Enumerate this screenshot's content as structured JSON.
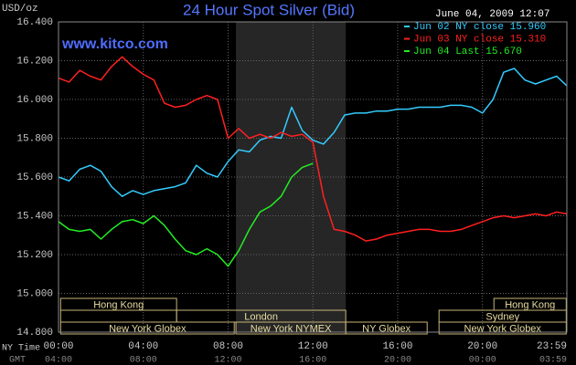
{
  "chart_data": {
    "type": "line",
    "title": "24 Hour Spot Silver (Bid)",
    "watermark": "www.kitco.com",
    "timestamp": "June 04, 2009 12:07",
    "y_label": "USD/oz",
    "x_axis_labels": [
      "NY Time",
      "GMT"
    ],
    "x": [
      0,
      0.5,
      1,
      1.5,
      2,
      2.5,
      3,
      3.5,
      4,
      4.5,
      5,
      5.5,
      6,
      6.5,
      7,
      7.5,
      8,
      8.5,
      9,
      9.5,
      10,
      10.5,
      11,
      11.5,
      12,
      12.5,
      13,
      13.5,
      14,
      14.5,
      15,
      15.5,
      16,
      16.5,
      17,
      17.5,
      18,
      18.5,
      19,
      19.5,
      20,
      20.5,
      21,
      21.5,
      22,
      22.5,
      23,
      23.5,
      23.98
    ],
    "xlim": [
      0,
      23.98
    ],
    "ylim": [
      14.8,
      16.4
    ],
    "yticks": [
      {
        "value": 14.8,
        "label": "14.800"
      },
      {
        "value": 15.0,
        "label": "15.000"
      },
      {
        "value": 15.2,
        "label": "15.200"
      },
      {
        "value": 15.4,
        "label": "15.400"
      },
      {
        "value": 15.6,
        "label": "15.600"
      },
      {
        "value": 15.8,
        "label": "15.800"
      },
      {
        "value": 16.0,
        "label": "16.000"
      },
      {
        "value": 16.2,
        "label": "16.200"
      },
      {
        "value": 16.4,
        "label": "16.400"
      }
    ],
    "xticks": [
      {
        "value": 0,
        "label": "00:00"
      },
      {
        "value": 4,
        "label": "04:00"
      },
      {
        "value": 8,
        "label": "08:00"
      },
      {
        "value": 12,
        "label": "12:00"
      },
      {
        "value": 16,
        "label": "16:00"
      },
      {
        "value": 20,
        "label": "20:00"
      },
      {
        "value": 23.98,
        "label": "23:59"
      }
    ],
    "x2_tick_labels": [
      "04:00",
      "08:00",
      "12:00",
      "16:00",
      "20:00",
      "00:00",
      "03:59"
    ],
    "grid": true,
    "legend": "top-right",
    "shaded": [
      8.37,
      13.55
    ],
    "series": [
      {
        "name": "Jun 02 NY close 15.960",
        "color": "#33ccff",
        "values": [
          15.6,
          15.58,
          15.64,
          15.66,
          15.63,
          15.55,
          15.5,
          15.53,
          15.51,
          15.53,
          15.54,
          15.55,
          15.57,
          15.66,
          15.62,
          15.6,
          15.68,
          15.74,
          15.73,
          15.79,
          15.81,
          15.8,
          15.96,
          15.84,
          15.79,
          15.77,
          15.83,
          15.92,
          15.93,
          15.93,
          15.94,
          15.94,
          15.95,
          15.95,
          15.96,
          15.96,
          15.96,
          15.97,
          15.97,
          15.96,
          15.93,
          16.0,
          16.14,
          16.16,
          16.1,
          16.08,
          16.1,
          16.12,
          16.07
        ]
      },
      {
        "name": "Jun 03 NY close 15.310",
        "color": "#ff2020",
        "values": [
          16.11,
          16.09,
          16.15,
          16.12,
          16.1,
          16.17,
          16.22,
          16.17,
          16.13,
          16.1,
          15.98,
          15.96,
          15.97,
          16.0,
          16.02,
          16.0,
          15.8,
          15.85,
          15.8,
          15.82,
          15.8,
          15.83,
          15.81,
          15.82,
          15.78,
          15.5,
          15.33,
          15.32,
          15.3,
          15.27,
          15.28,
          15.3,
          15.31,
          15.32,
          15.33,
          15.33,
          15.32,
          15.32,
          15.33,
          15.35,
          15.37,
          15.39,
          15.4,
          15.39,
          15.4,
          15.41,
          15.4,
          15.42,
          15.41
        ]
      },
      {
        "name": "Jun 04 Last 15.670",
        "color": "#22ee22",
        "values": [
          15.37,
          15.33,
          15.32,
          15.33,
          15.28,
          15.33,
          15.37,
          15.38,
          15.36,
          15.4,
          15.35,
          15.28,
          15.22,
          15.2,
          15.23,
          15.2,
          15.14,
          15.22,
          15.33,
          15.42,
          15.45,
          15.5,
          15.6,
          15.65,
          15.67,
          null,
          null,
          null,
          null,
          null,
          null,
          null,
          null,
          null,
          null,
          null,
          null,
          null,
          null,
          null,
          null,
          null,
          null,
          null,
          null,
          null,
          null,
          null,
          null
        ]
      }
    ],
    "sessions": [
      [
        {
          "label": "Hong Kong",
          "start": 0.1,
          "end": 5.57
        },
        {
          "label": "Hong Kong",
          "start": 20.54,
          "end": 23.95
        }
      ],
      [
        {
          "start": 0.1,
          "end": 5.57
        },
        {
          "label": "London",
          "start": 5.57,
          "end": 13.55
        },
        {
          "label": "Sydney",
          "start": 17.95,
          "end": 23.95
        }
      ],
      [
        {
          "label": "New York Globex",
          "start": 0.1,
          "end": 8.29
        },
        {
          "label": "New York NYMEX",
          "start": 8.37,
          "end": 13.55
        },
        {
          "label": "NY Globex",
          "start": 13.55,
          "end": 17.39
        },
        {
          "label": "New York Globex",
          "start": 17.95,
          "end": 23.95
        }
      ]
    ]
  }
}
